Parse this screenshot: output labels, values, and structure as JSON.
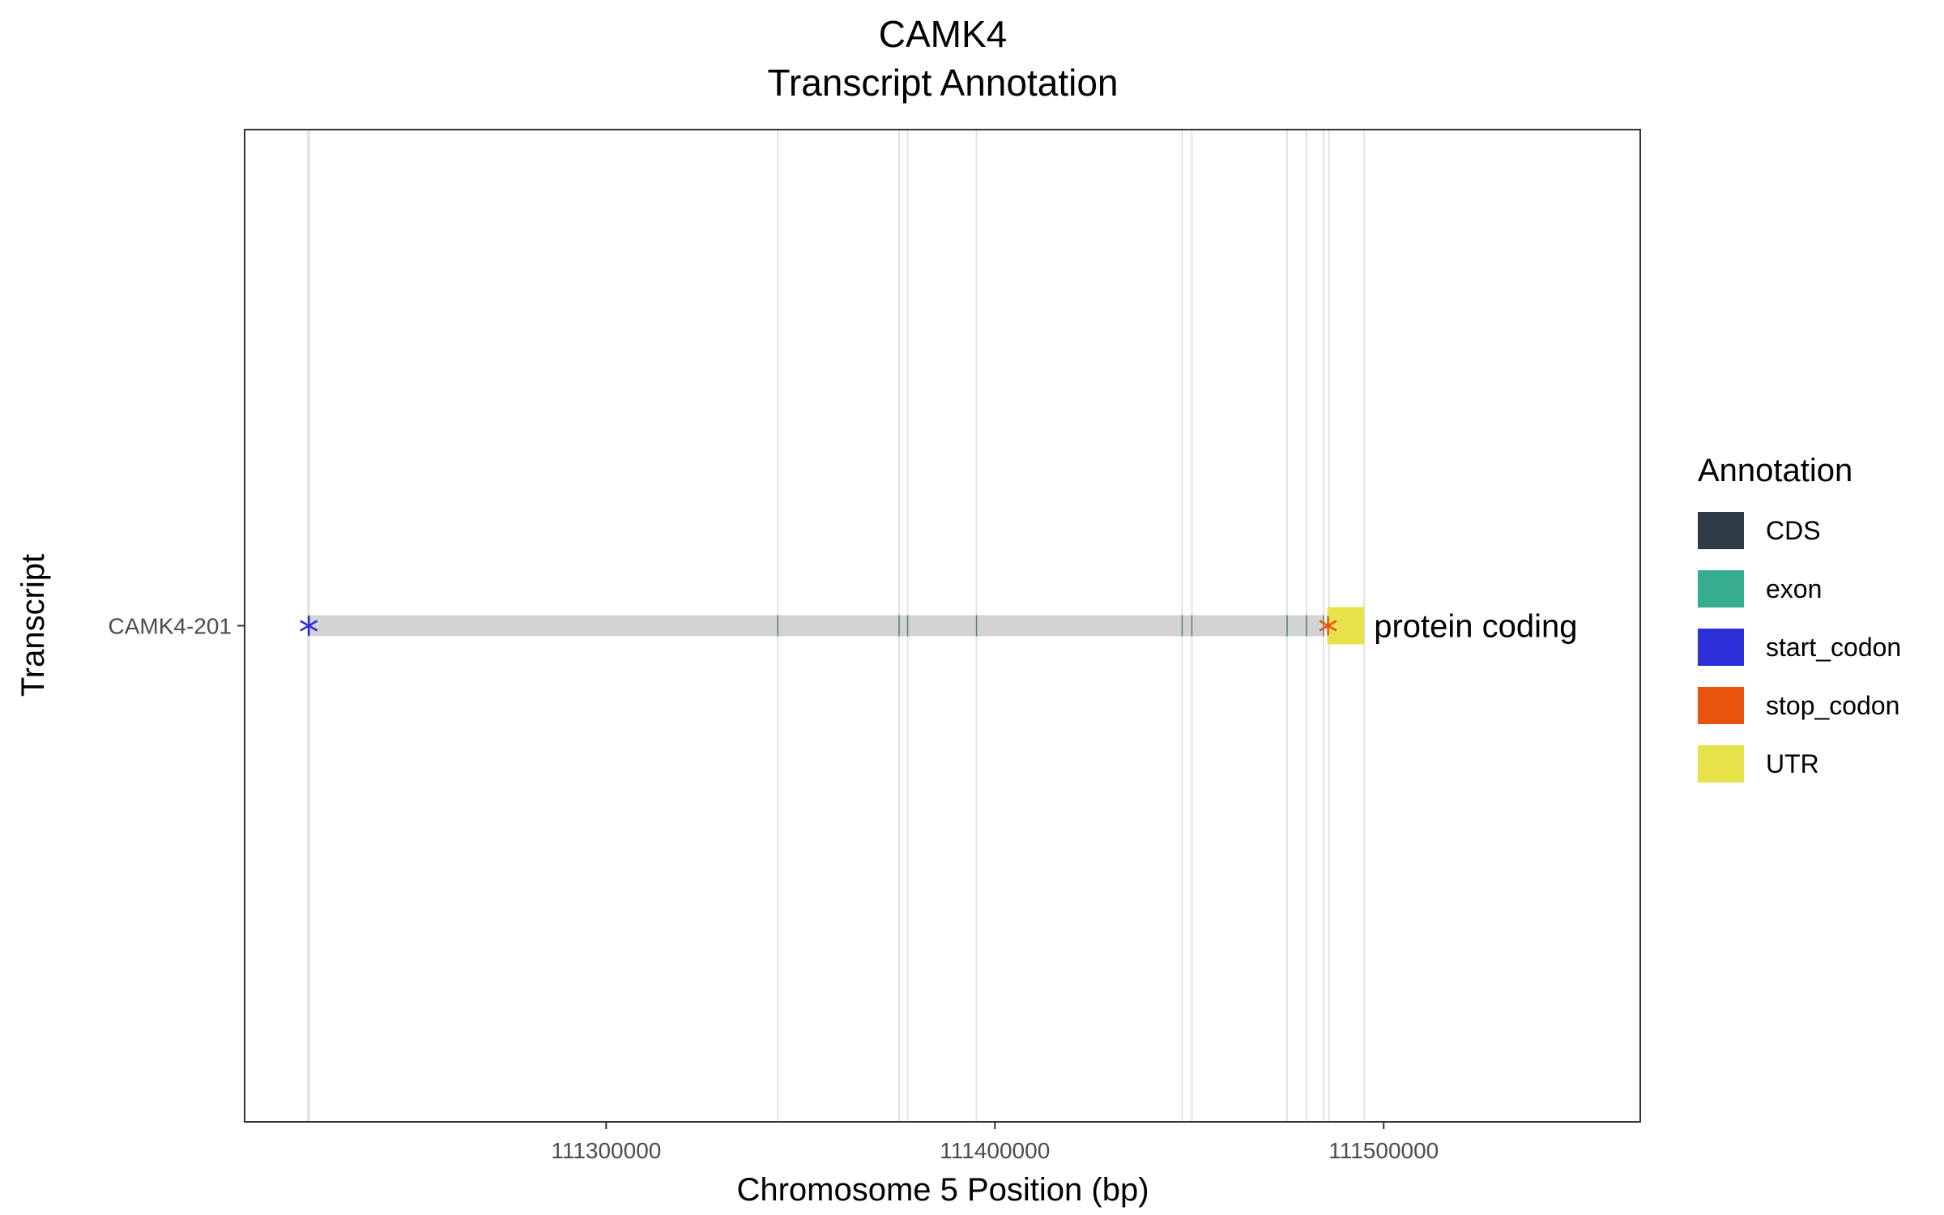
{
  "chart_data": {
    "type": "gene-track",
    "title": "CAMK4",
    "subtitle": "Transcript Annotation",
    "xlabel": "Chromosome 5 Position (bp)",
    "ylabel": "Transcript",
    "xlim": [
      111207000,
      111566000
    ],
    "x_ticks": [
      111300000,
      111400000,
      111500000
    ],
    "x_tick_labels": [
      "111300000",
      "111400000",
      "111500000"
    ],
    "transcripts": [
      {
        "name": "CAMK4-201",
        "biotype_label": "protein coding",
        "start": 111223500,
        "end": 111495000,
        "exons": [
          [
            111223300,
            111223600
          ],
          [
            111344000,
            111344300
          ],
          [
            111375200,
            111375500
          ],
          [
            111377400,
            111377700
          ],
          [
            111395100,
            111395400
          ],
          [
            111448000,
            111448300
          ],
          [
            111450500,
            111450800
          ],
          [
            111475000,
            111475300
          ],
          [
            111480000,
            111480300
          ],
          [
            111484400,
            111484700
          ],
          [
            111485500,
            111495000
          ]
        ],
        "cds": [
          [
            111223300,
            111223600
          ],
          [
            111344000,
            111344300
          ],
          [
            111375200,
            111375500
          ],
          [
            111377400,
            111377700
          ],
          [
            111395100,
            111395400
          ],
          [
            111448000,
            111448300
          ],
          [
            111450500,
            111450800
          ],
          [
            111475000,
            111475300
          ],
          [
            111480000,
            111480300
          ],
          [
            111484400,
            111484700
          ],
          [
            111485500,
            111486000
          ]
        ],
        "utr": [
          [
            111485500,
            111495000
          ]
        ],
        "start_codon": 111223500,
        "stop_codon": 111485700
      }
    ],
    "exon_guides": [
      111223300,
      111223600,
      111344150,
      111375350,
      111377550,
      111395250,
      111448150,
      111450650,
      111475150,
      111480150,
      111484550,
      111486000,
      111495000
    ],
    "legend": {
      "title": "Annotation",
      "placement": "right",
      "items": [
        {
          "label": "CDS",
          "color": "#2f3b45"
        },
        {
          "label": "exon",
          "color": "#35ad8f"
        },
        {
          "label": "start_codon",
          "color": "#2d2fd8"
        },
        {
          "label": "stop_codon",
          "color": "#e8540e"
        },
        {
          "label": "UTR",
          "color": "#e8e24a"
        }
      ]
    },
    "colors": {
      "intron_bar": "#d3d3d3",
      "guide_line": "#e2e2e2",
      "panel_border": "#333333"
    },
    "grid": false
  }
}
